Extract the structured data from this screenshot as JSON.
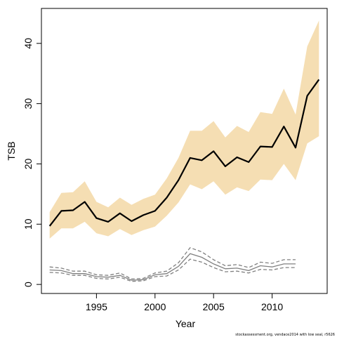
{
  "chart_data": {
    "type": "line",
    "xlabel": "Year",
    "ylabel": "TSB",
    "xlim": [
      1990.3,
      2014.7
    ],
    "ylim": [
      -1.5,
      45.8
    ],
    "xticks": [
      1995,
      2000,
      2005,
      2010
    ],
    "yticks": [
      0,
      10,
      20,
      30,
      40
    ],
    "grid": false,
    "footnote": "stockassessment.org, vendace2014 with low seal, r5626",
    "colors": {
      "band": "#f5deb3",
      "main": "#000000",
      "secondary": "#808080"
    },
    "series": [
      {
        "role": "main",
        "x": [
          1991,
          1992,
          1993,
          1994,
          1995,
          1996,
          1997,
          1998,
          1999,
          2000,
          2001,
          2002,
          2003,
          2004,
          2005,
          2006,
          2007,
          2008,
          2009,
          2010,
          2011,
          2012,
          2013,
          2014
        ],
        "values": [
          9.7,
          12.2,
          12.3,
          13.7,
          11.0,
          10.4,
          11.8,
          10.5,
          11.5,
          12.2,
          14.4,
          17.3,
          21.0,
          20.6,
          22.1,
          19.6,
          21.1,
          20.3,
          22.9,
          22.8,
          26.2,
          22.7,
          31.3,
          34.0
        ],
        "lower": [
          7.6,
          9.3,
          9.3,
          10.4,
          8.5,
          8.0,
          9.2,
          8.2,
          9.0,
          9.6,
          11.4,
          13.6,
          16.6,
          15.8,
          17.1,
          14.9,
          16.1,
          15.5,
          17.4,
          17.3,
          20.0,
          17.3,
          23.4,
          24.6
        ],
        "upper": [
          12.0,
          15.2,
          15.3,
          17.1,
          13.7,
          12.8,
          14.4,
          13.2,
          14.2,
          14.9,
          17.6,
          21.0,
          25.5,
          25.5,
          27.1,
          24.4,
          26.3,
          25.3,
          28.6,
          28.3,
          32.5,
          28.2,
          39.5,
          43.8
        ]
      },
      {
        "role": "secondary",
        "x": [
          1991,
          1992,
          1993,
          1994,
          1995,
          1996,
          1997,
          1998,
          1999,
          2000,
          2001,
          2002,
          2003,
          2004,
          2005,
          2006,
          2007,
          2008,
          2009,
          2010,
          2011,
          2012,
          2013
        ],
        "values": [
          2.4,
          2.3,
          1.8,
          1.8,
          1.3,
          1.2,
          1.5,
          0.7,
          0.8,
          1.6,
          1.8,
          3.0,
          5.1,
          4.5,
          3.4,
          2.6,
          2.7,
          2.3,
          3.1,
          2.9,
          3.4,
          3.4,
          null
        ],
        "lower": [
          2.0,
          1.9,
          1.5,
          1.5,
          1.0,
          0.9,
          1.2,
          0.5,
          0.6,
          1.3,
          1.4,
          2.4,
          4.2,
          3.7,
          2.8,
          2.1,
          2.2,
          1.9,
          2.5,
          2.4,
          2.8,
          2.8,
          null
        ],
        "upper": [
          2.9,
          2.7,
          2.2,
          2.2,
          1.6,
          1.5,
          1.9,
          0.9,
          1.0,
          1.9,
          2.2,
          3.6,
          6.1,
          5.4,
          4.1,
          3.1,
          3.3,
          2.8,
          3.7,
          3.5,
          4.1,
          4.1,
          null
        ]
      }
    ]
  }
}
